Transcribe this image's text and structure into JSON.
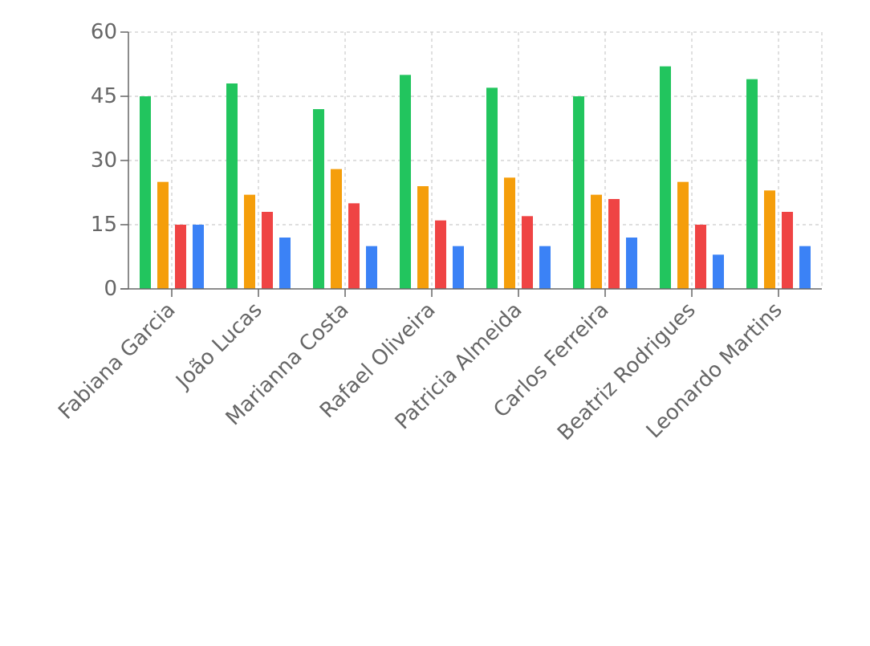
{
  "chart_data": {
    "type": "bar",
    "title": "",
    "xlabel": "",
    "ylabel": "",
    "ylim": [
      0,
      60
    ],
    "yticks": [
      0,
      15,
      30,
      45,
      60
    ],
    "grid": true,
    "legend": "none",
    "categories": [
      "Fabiana Garcia",
      "João Lucas",
      "Marianna Costa",
      "Rafael Oliveira",
      "Patricia Almeida",
      "Carlos Ferreira",
      "Beatriz Rodrigues",
      "Leonardo Martins"
    ],
    "series": [
      {
        "color": "#22c55e",
        "values": [
          45,
          48,
          42,
          50,
          47,
          45,
          52,
          49
        ]
      },
      {
        "color": "#f59e0b",
        "values": [
          25,
          22,
          28,
          24,
          26,
          22,
          25,
          23
        ]
      },
      {
        "color": "#ef4444",
        "values": [
          15,
          18,
          20,
          16,
          17,
          21,
          15,
          18
        ]
      },
      {
        "color": "#3b82f6",
        "values": [
          15,
          12,
          10,
          10,
          10,
          12,
          8,
          10
        ]
      }
    ]
  }
}
